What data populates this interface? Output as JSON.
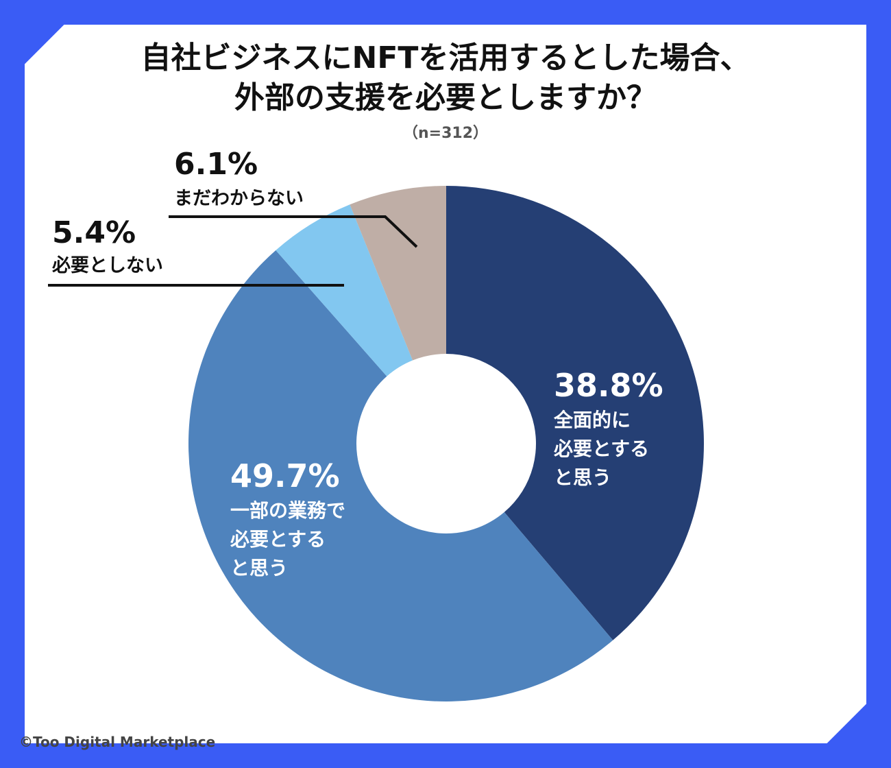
{
  "title_line1": "自社ビジネスにNFTを活用するとした場合、",
  "title_line2": "外部の支援を必要としますか？",
  "sample_size": "（n=312）",
  "credit": "©Too Digital Marketplace",
  "colors": {
    "frame": "#3a5cf5",
    "background": "#ffffff"
  },
  "chart_data": {
    "type": "pie",
    "donut": true,
    "start": "top, clockwise",
    "slices": [
      {
        "value": 38.8,
        "pct_label": "38.8%",
        "label_lines": [
          "全面的に",
          "必要とする",
          "と思う"
        ],
        "color": "#253f74",
        "text_color": "#ffffff",
        "label_placement": "inside"
      },
      {
        "value": 49.7,
        "pct_label": "49.7%",
        "label_lines": [
          "一部の業務で",
          "必要とする",
          "と思う"
        ],
        "color": "#4f83bd",
        "text_color": "#ffffff",
        "label_placement": "inside"
      },
      {
        "value": 5.4,
        "pct_label": "5.4%",
        "label_lines": [
          "必要としない"
        ],
        "color": "#82c7f0",
        "text_color": "#111111",
        "label_placement": "outside-left"
      },
      {
        "value": 6.1,
        "pct_label": "6.1%",
        "label_lines": [
          "まだわからない"
        ],
        "color": "#bfaea6",
        "text_color": "#111111",
        "label_placement": "outside-top-left"
      }
    ]
  }
}
